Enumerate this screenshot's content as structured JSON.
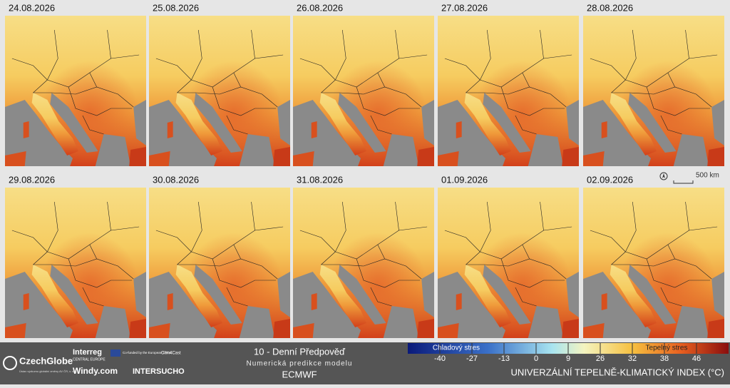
{
  "panels": {
    "dates": [
      "24.08.2026",
      "25.08.2026",
      "26.08.2026",
      "27.08.2026",
      "28.08.2026",
      "29.08.2026",
      "30.08.2026",
      "31.08.2026",
      "01.09.2026",
      "02.09.2026"
    ]
  },
  "scale_bar": {
    "label": "500 km"
  },
  "footer": {
    "logos": {
      "czechglobe": "CzechGlobe",
      "czechglobe_sub": "Ústav výzkumu globální změny AV ČR, v. v. i.",
      "interreg": "Interreg",
      "interreg_sub": "CENTRAL EUROPE",
      "eu": "Co-funded by the European Union",
      "clim4cast": "Clim4Cast",
      "windy": "Windy.com",
      "intersucho": "INTERSUCHO"
    },
    "title": "10 - Denní Předpověď",
    "subtitle": "Numerická predikce modelu",
    "model": "ECMWF"
  },
  "legend": {
    "cold_label": "Chladový stres",
    "heat_label": "Tepelný stres",
    "ticks": [
      -40,
      -27,
      -13,
      0,
      9,
      26,
      32,
      38,
      46
    ],
    "title": "UNIVERZÁLNÍ TEPELNĚ-KLIMATICKÝ INDEX (°C)"
  }
}
